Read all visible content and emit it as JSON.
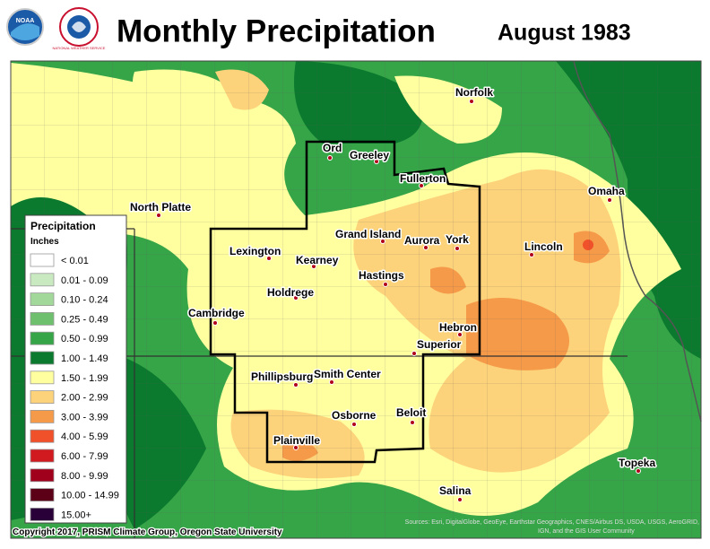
{
  "header": {
    "title": "Monthly Precipitation",
    "date": "August 1983",
    "logo_left": "NOAA",
    "logo_right": "NATIONAL WEATHER SERVICE"
  },
  "legend": {
    "title": "Precipitation",
    "units": "Inches",
    "items": [
      {
        "label": "< 0.01",
        "color": "#ffffff"
      },
      {
        "label": "0.01 - 0.09",
        "color": "#c9e9c0"
      },
      {
        "label": "0.10 - 0.24",
        "color": "#a2d89a"
      },
      {
        "label": "0.25 - 0.49",
        "color": "#6fc06e"
      },
      {
        "label": "0.50 - 0.99",
        "color": "#36a548"
      },
      {
        "label": "1.00 - 1.49",
        "color": "#0b7a2e"
      },
      {
        "label": "1.50 - 1.99",
        "color": "#ffffa0"
      },
      {
        "label": "2.00 - 2.99",
        "color": "#fcd27a"
      },
      {
        "label": "3.00 - 3.99",
        "color": "#f59a48"
      },
      {
        "label": "4.00 - 5.99",
        "color": "#f0502a"
      },
      {
        "label": "6.00 - 7.99",
        "color": "#d01a20"
      },
      {
        "label": "8.00 - 9.99",
        "color": "#a0001c"
      },
      {
        "label": "10.00 - 14.99",
        "color": "#5c0018"
      },
      {
        "label": "15.00+",
        "color": "#2a0038"
      }
    ]
  },
  "cities": [
    "North Platte",
    "Ord",
    "Greeley",
    "Fullerton",
    "Norfolk",
    "Omaha",
    "Lincoln",
    "Grand Island",
    "Aurora",
    "York",
    "Lexington",
    "Kearney",
    "Hastings",
    "Holdrege",
    "Cambridge",
    "Hebron",
    "Superior",
    "Phillipsburg",
    "Smith Center",
    "Osborne",
    "Beloit",
    "Plainville",
    "Salina",
    "Topeka"
  ],
  "credits": {
    "copyright": "Copyright 2017, PRISM Climate Group, Oregon State University",
    "sources_line1": "Sources: Esri, DigitalGlobe, GeoEye, Earthstar Geographics, CNES/Airbus DS, USDA, USGS, AeroGRID,",
    "sources_line2": "IGN, and the GIS User Community"
  }
}
